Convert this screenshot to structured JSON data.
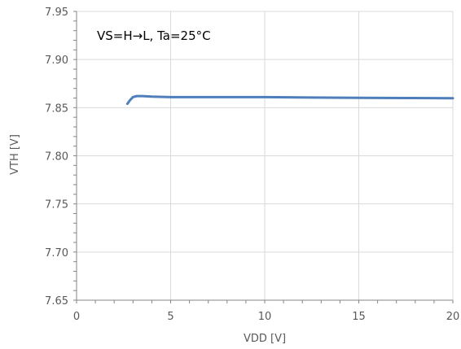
{
  "chart_data": {
    "type": "line",
    "annotation": "VS=H→L, Ta=25°C",
    "xlabel": "VDD [V]",
    "ylabel": "VTH [V]",
    "xlim": [
      0,
      20
    ],
    "ylim": [
      7.65,
      7.95
    ],
    "x_ticks": [
      0,
      5,
      10,
      15,
      20
    ],
    "y_ticks": [
      7.65,
      7.7,
      7.75,
      7.8,
      7.85,
      7.9,
      7.95
    ],
    "x_minor_step": 1,
    "y_minor_step": 0.01,
    "grid": true,
    "series": [
      {
        "x": [
          2.7,
          2.85,
          3.0,
          3.2,
          3.5,
          4.0,
          5.0,
          7.5,
          10.0,
          12.5,
          15.0,
          17.5,
          20.0
        ],
        "y": [
          7.854,
          7.858,
          7.861,
          7.862,
          7.862,
          7.8615,
          7.861,
          7.861,
          7.861,
          7.8605,
          7.8602,
          7.86,
          7.8598
        ]
      }
    ],
    "colors": {
      "series": "#4f7fba",
      "grid": "#d9d9d9",
      "axis": "#868686",
      "tick_text": "#595959"
    }
  }
}
